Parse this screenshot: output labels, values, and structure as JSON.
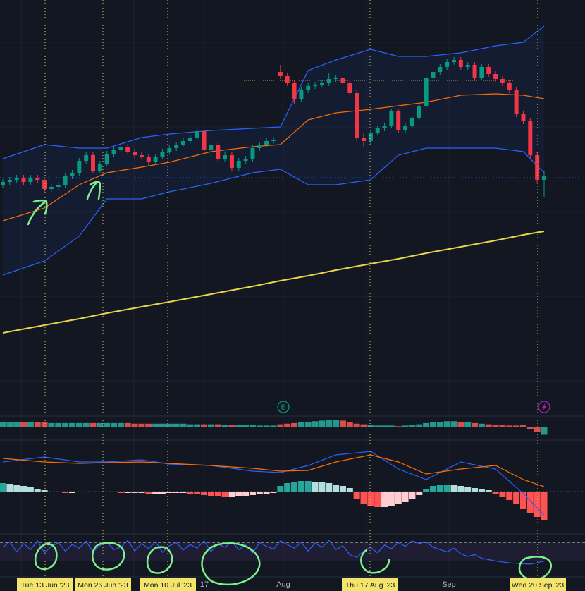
{
  "chart_data": {
    "type": "candlestick",
    "open": [
      338,
      342,
      345,
      348,
      342,
      348,
      345,
      332,
      335,
      338,
      350,
      355,
      372,
      380,
      358,
      368,
      382,
      388,
      392,
      385,
      380,
      378,
      370,
      378,
      385,
      390,
      395,
      400,
      405,
      414,
      388,
      395,
      375,
      380,
      362,
      372,
      375,
      390,
      395,
      400,
      498,
      492,
      482,
      460,
      472,
      478,
      480,
      482,
      488,
      490,
      482,
      468,
      405,
      400,
      412,
      418,
      422,
      442,
      415,
      422,
      432,
      450,
      490,
      498,
      505,
      512,
      515,
      505,
      508,
      490,
      505,
      495,
      488,
      482,
      472,
      438,
      428,
      380,
      345
    ],
    "high": [
      346,
      349,
      352,
      352,
      352,
      352,
      349,
      339,
      342,
      354,
      359,
      376,
      384,
      384,
      372,
      386,
      392,
      396,
      396,
      389,
      384,
      382,
      382,
      389,
      394,
      399,
      404,
      409,
      418,
      418,
      399,
      399,
      384,
      384,
      376,
      379,
      394,
      399,
      404,
      406,
      508,
      496,
      486,
      476,
      482,
      484,
      486,
      496,
      494,
      494,
      486,
      472,
      412,
      416,
      422,
      426,
      446,
      446,
      426,
      436,
      454,
      494,
      502,
      509,
      516,
      519,
      519,
      512,
      512,
      509,
      509,
      499,
      492,
      486,
      476,
      442,
      432,
      384,
      358
    ],
    "low": [
      334,
      338,
      341,
      338,
      338,
      341,
      328,
      328,
      331,
      334,
      346,
      351,
      368,
      354,
      354,
      364,
      378,
      384,
      381,
      376,
      374,
      366,
      366,
      374,
      381,
      386,
      391,
      396,
      401,
      384,
      380,
      371,
      371,
      358,
      358,
      368,
      371,
      386,
      391,
      396,
      488,
      478,
      452,
      456,
      468,
      474,
      476,
      478,
      484,
      478,
      464,
      400,
      392,
      396,
      408,
      414,
      418,
      411,
      411,
      418,
      428,
      446,
      486,
      494,
      501,
      508,
      501,
      501,
      486,
      486,
      491,
      484,
      478,
      468,
      434,
      424,
      376,
      341,
      320
    ],
    "close": [
      342,
      345,
      348,
      342,
      348,
      345,
      332,
      335,
      338,
      350,
      355,
      372,
      380,
      358,
      368,
      382,
      388,
      392,
      385,
      380,
      378,
      370,
      378,
      385,
      390,
      395,
      400,
      405,
      414,
      388,
      395,
      375,
      380,
      362,
      372,
      375,
      390,
      395,
      400,
      402,
      492,
      482,
      460,
      472,
      478,
      480,
      482,
      488,
      490,
      482,
      468,
      405,
      400,
      412,
      418,
      422,
      442,
      415,
      422,
      432,
      450,
      490,
      498,
      505,
      512,
      515,
      505,
      508,
      490,
      505,
      495,
      488,
      482,
      472,
      438,
      428,
      380,
      345,
      350
    ],
    "ylim": [
      40,
      600
    ],
    "colors": {
      "up": "#089981",
      "down": "#f23645",
      "band": "#2962ff",
      "basis": "#ff6d00",
      "ma": "#e8d44d"
    },
    "overlays": {
      "x": [
        0,
        6,
        11,
        15,
        20,
        24,
        30,
        36,
        40,
        44,
        48,
        53,
        57,
        61,
        66,
        71,
        75,
        78
      ],
      "upper": [
        375,
        395,
        390,
        390,
        405,
        410,
        415,
        418,
        420,
        500,
        515,
        530,
        520,
        520,
        525,
        535,
        540,
        563
      ],
      "basis": [
        287,
        305,
        338,
        355,
        363,
        370,
        385,
        392,
        395,
        430,
        440,
        445,
        450,
        455,
        465,
        467,
        465,
        460
      ],
      "lower": [
        210,
        230,
        265,
        318,
        318,
        328,
        340,
        355,
        360,
        338,
        338,
        345,
        380,
        390,
        390,
        390,
        385,
        355
      ],
      "ma": [
        128,
        139,
        148,
        156,
        165,
        172,
        183,
        194,
        202,
        209,
        217,
        226,
        233,
        241,
        250,
        259,
        267,
        272
      ]
    },
    "oscillator": {
      "ylim": [
        -16,
        16
      ],
      "values": [
        8,
        8,
        8,
        8,
        8,
        8,
        8,
        7,
        7,
        7,
        7,
        7,
        7,
        7,
        7,
        7,
        7,
        7,
        7,
        6,
        6,
        6,
        6,
        6,
        6,
        6,
        6,
        5,
        5,
        5,
        5,
        5,
        4,
        4,
        4,
        4,
        4,
        3,
        3,
        3,
        5,
        6,
        7,
        8,
        9,
        10,
        11,
        12,
        12,
        11,
        9,
        6,
        5,
        4,
        3,
        3,
        3,
        2,
        3,
        4,
        5,
        7,
        8,
        9,
        10,
        10,
        9,
        8,
        7,
        6,
        5,
        4,
        4,
        3,
        3,
        4,
        -3,
        -8,
        -12
      ]
    },
    "macd": {
      "ylim": [
        -63,
        67
      ],
      "histogram": [
        12,
        11,
        10,
        8,
        6,
        4,
        2,
        -1,
        -1,
        -2,
        -2,
        -1,
        -1,
        -1,
        -1,
        -1,
        -1,
        -2,
        -2,
        -2,
        -2,
        -3,
        -3,
        -3,
        -2,
        -2,
        -2,
        -3,
        -4,
        -5,
        -6,
        -7,
        -8,
        -8,
        -7,
        -6,
        -5,
        -4,
        -3,
        -2,
        8,
        12,
        14,
        15,
        15,
        14,
        13,
        12,
        10,
        8,
        5,
        -10,
        -18,
        -20,
        -22,
        -22,
        -20,
        -18,
        -15,
        -10,
        -5,
        4,
        8,
        10,
        10,
        9,
        8,
        7,
        5,
        4,
        2,
        -4,
        -8,
        -12,
        -18,
        -25,
        -30,
        -36,
        -40
      ],
      "x": [
        0,
        6,
        11,
        15,
        20,
        24,
        30,
        36,
        40,
        44,
        48,
        53,
        57,
        61,
        66,
        71,
        75,
        78
      ],
      "macd": [
        42,
        49,
        42,
        42,
        45,
        39,
        37,
        29,
        27,
        37,
        52,
        57,
        32,
        17,
        42,
        32,
        -3,
        -33
      ],
      "signal": [
        47,
        42,
        40,
        41,
        42,
        40,
        37,
        33,
        29,
        30,
        42,
        52,
        42,
        25,
        32,
        37,
        17,
        7
      ]
    },
    "rsi": {
      "ylim": [
        0,
        100
      ],
      "levels": [
        70,
        30
      ],
      "values": [
        60,
        72,
        50,
        68,
        55,
        74,
        48,
        62,
        70,
        52,
        66,
        58,
        73,
        50,
        64,
        71,
        55,
        60,
        75,
        52,
        68,
        57,
        72,
        49,
        63,
        70,
        54,
        66,
        58,
        74,
        51,
        67,
        60,
        72,
        55,
        65,
        48,
        70,
        62,
        56,
        74,
        66,
        58,
        71,
        52,
        69,
        60,
        75,
        55,
        63,
        44,
        38,
        52,
        60,
        48,
        65,
        57,
        70,
        62,
        74,
        68,
        72,
        60,
        55,
        50,
        58,
        46,
        40,
        44,
        36,
        33,
        30,
        28,
        26,
        25,
        24,
        23,
        26,
        30
      ]
    },
    "earnings_badge": "E",
    "axis_labels": [
      "17",
      "Aug",
      "Sep"
    ],
    "crosshair_labels": [
      "Tue 13 Jun '23",
      "Mon 26 Jun '23",
      "Mon 10 Jul '23",
      "Thu 17 Aug '23",
      "Wed 20 Sep '23"
    ]
  }
}
